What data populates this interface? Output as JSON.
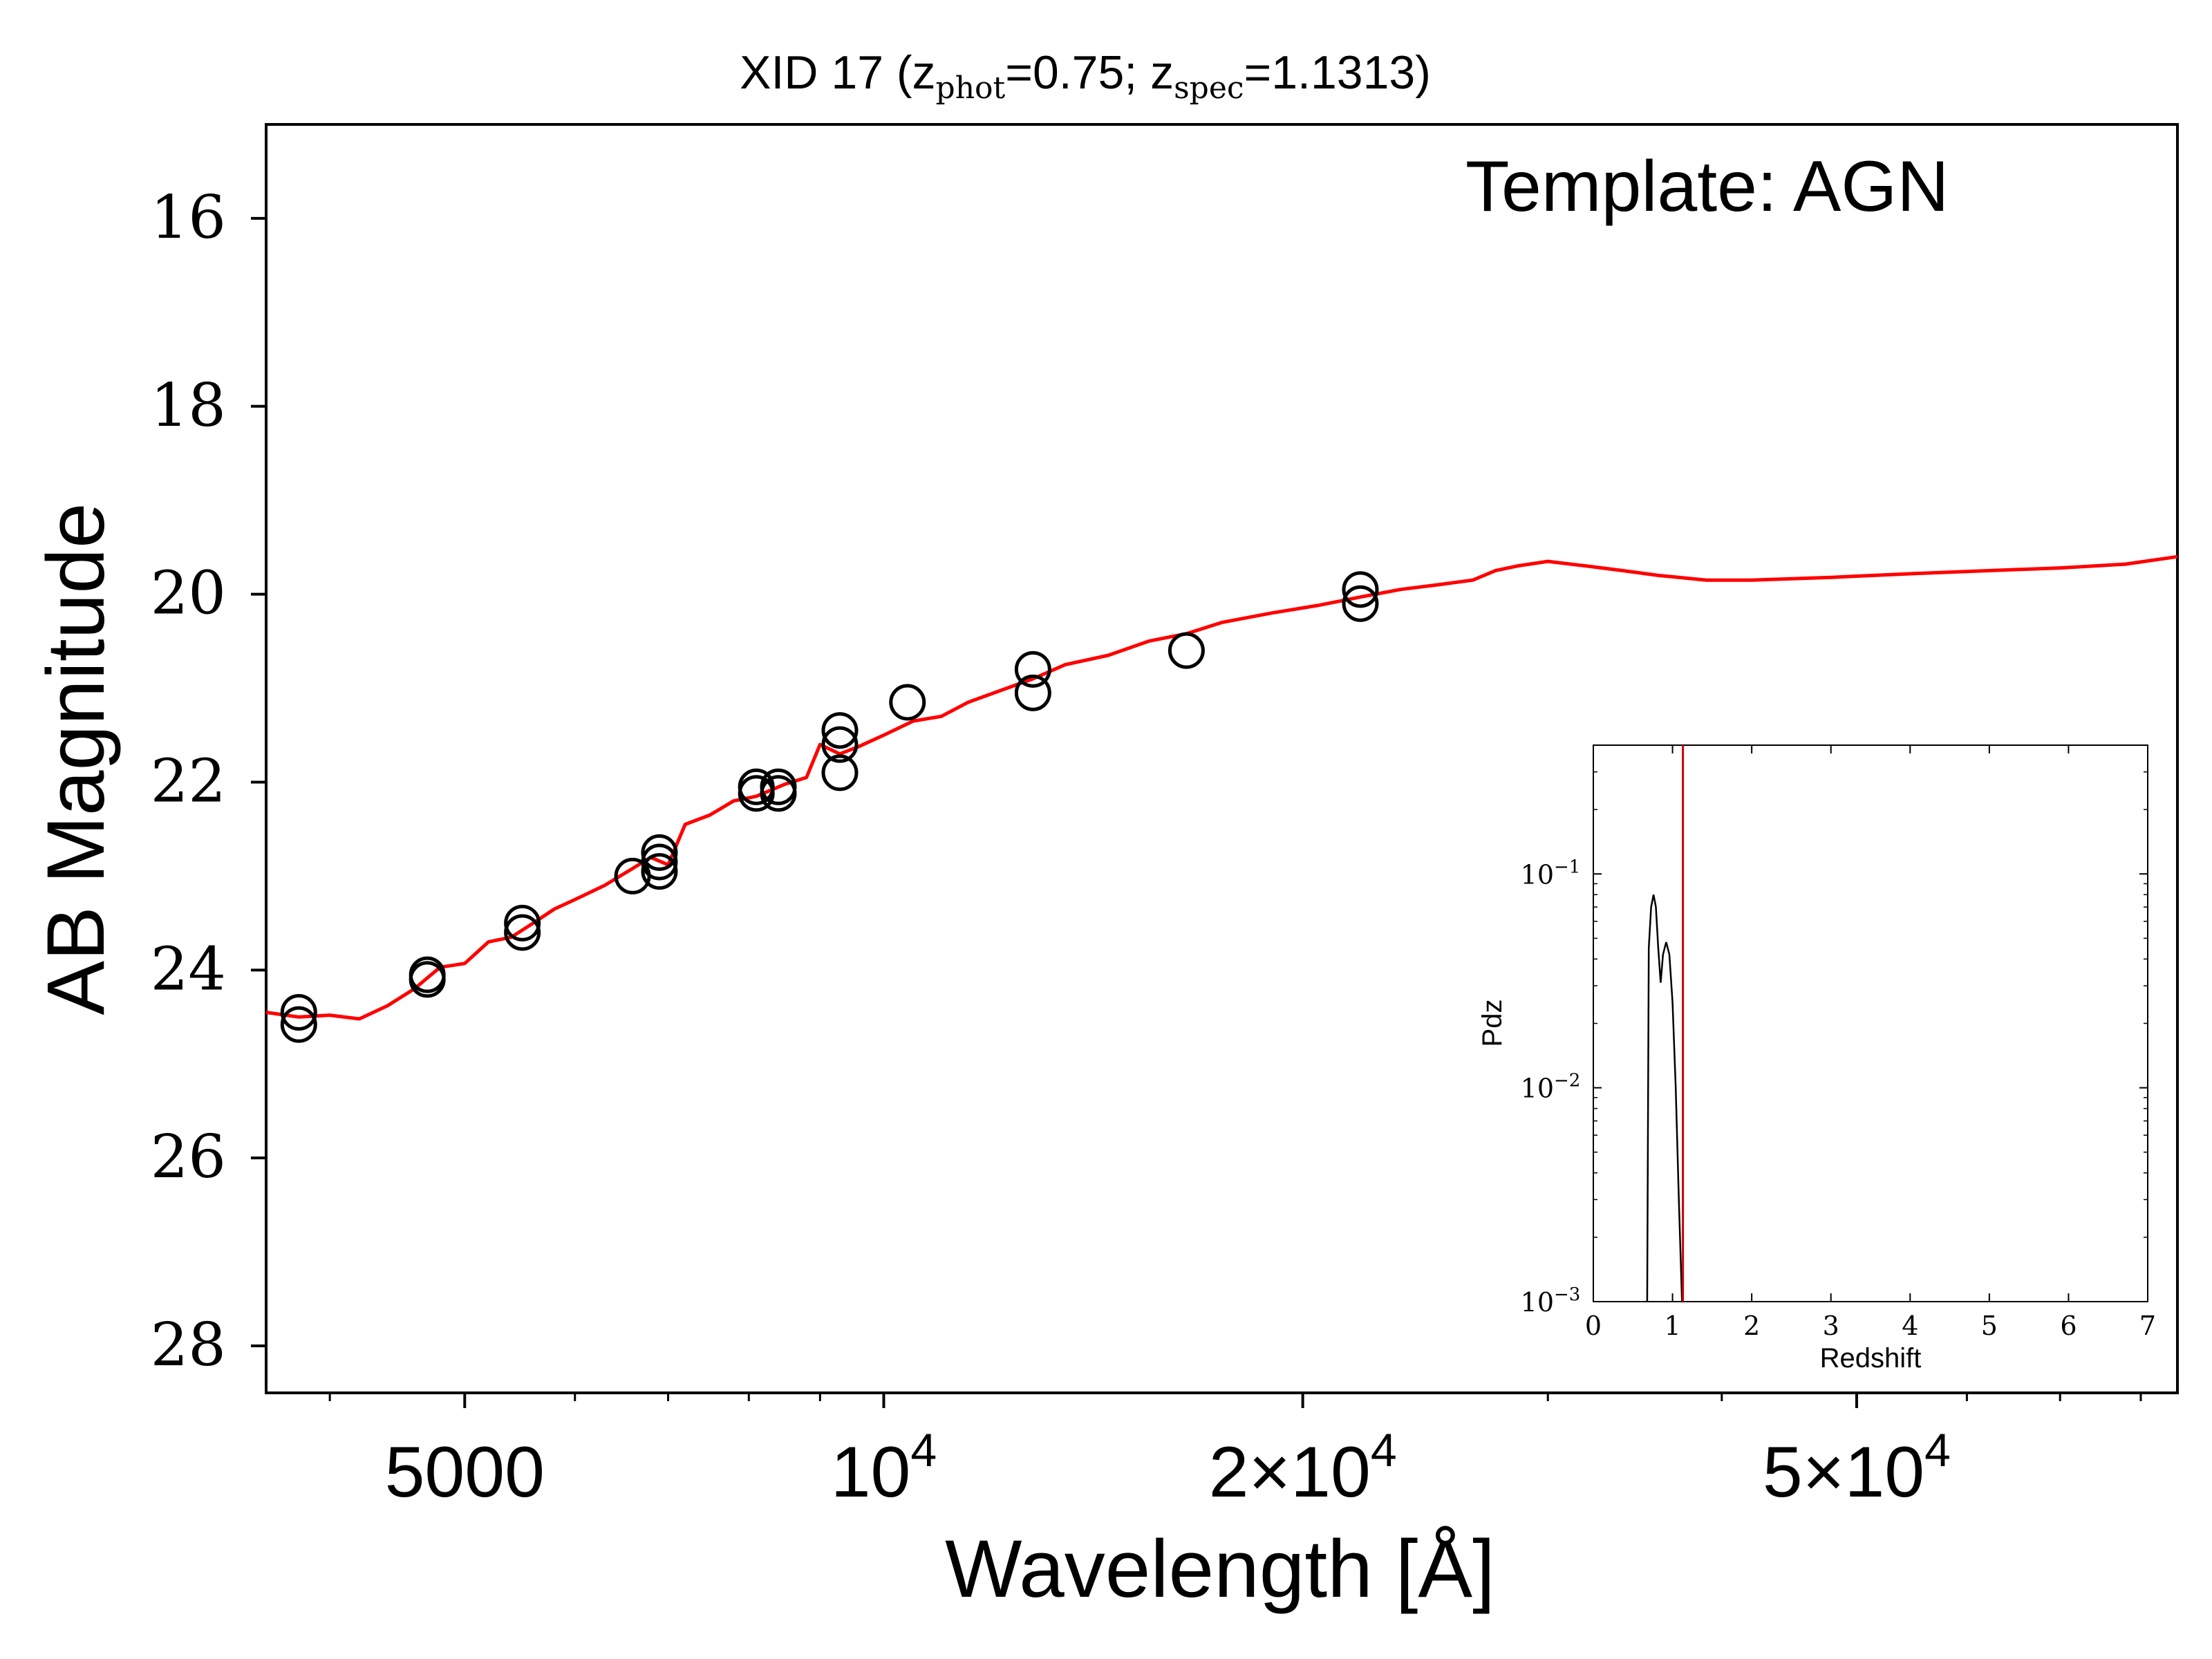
{
  "chart_data": [
    {
      "type": "scatter",
      "title": {
        "prefix": "XID 17 (z",
        "sub1": "phot",
        "mid": "=0.75; z",
        "sub2": "spec",
        "suffix": "=1.1313)"
      },
      "annotation": "Template: AGN",
      "xlabel": "Wavelength [Å]",
      "ylabel": "AB Magnitude",
      "xscale": "log",
      "xlim": [
        3600,
        85000
      ],
      "ylim": [
        28.5,
        15
      ],
      "y_inverted": true,
      "xticks": [
        {
          "value": 5000,
          "base": "5000",
          "exp": ""
        },
        {
          "value": 10000,
          "base": "10",
          "exp": "4"
        },
        {
          "value": 20000,
          "base": "2×10",
          "exp": "4"
        },
        {
          "value": 50000,
          "base": "5×10",
          "exp": "4"
        }
      ],
      "yticks": [
        "16",
        "18",
        "20",
        "22",
        "24",
        "26",
        "28"
      ],
      "grid": false,
      "colors": {
        "template": "#ff0000",
        "points": "#000000"
      },
      "series": [
        {
          "kind": "points",
          "points": [
            [
              3800,
              24.45
            ],
            [
              3800,
              24.58
            ],
            [
              4700,
              24.05
            ],
            [
              4700,
              24.1
            ],
            [
              5500,
              23.5
            ],
            [
              5500,
              23.6
            ],
            [
              6600,
              23.0
            ],
            [
              6900,
              22.75
            ],
            [
              6900,
              22.85
            ],
            [
              6900,
              22.95
            ],
            [
              8100,
              22.05
            ],
            [
              8100,
              22.12
            ],
            [
              8400,
              22.05
            ],
            [
              8400,
              22.12
            ],
            [
              9300,
              21.45
            ],
            [
              9300,
              21.6
            ],
            [
              9300,
              21.9
            ],
            [
              10400,
              21.15
            ],
            [
              12800,
              20.8
            ],
            [
              12800,
              21.05
            ],
            [
              16500,
              20.6
            ],
            [
              22000,
              19.95
            ],
            [
              22000,
              20.1
            ]
          ]
        },
        {
          "kind": "line",
          "points": [
            [
              3600,
              24.45
            ],
            [
              3800,
              24.5
            ],
            [
              4000,
              24.48
            ],
            [
              4200,
              24.52
            ],
            [
              4400,
              24.38
            ],
            [
              4600,
              24.2
            ],
            [
              4800,
              23.97
            ],
            [
              5000,
              23.93
            ],
            [
              5200,
              23.7
            ],
            [
              5400,
              23.65
            ],
            [
              5600,
              23.5
            ],
            [
              5800,
              23.35
            ],
            [
              6000,
              23.25
            ],
            [
              6300,
              23.1
            ],
            [
              6600,
              22.92
            ],
            [
              6800,
              22.8
            ],
            [
              7000,
              22.88
            ],
            [
              7200,
              22.45
            ],
            [
              7500,
              22.35
            ],
            [
              7800,
              22.2
            ],
            [
              8100,
              22.15
            ],
            [
              8500,
              22.02
            ],
            [
              8800,
              21.95
            ],
            [
              9000,
              21.6
            ],
            [
              9300,
              21.7
            ],
            [
              9600,
              21.62
            ],
            [
              10000,
              21.5
            ],
            [
              10500,
              21.35
            ],
            [
              11000,
              21.3
            ],
            [
              11500,
              21.15
            ],
            [
              12000,
              21.05
            ],
            [
              12800,
              20.9
            ],
            [
              13500,
              20.75
            ],
            [
              14500,
              20.65
            ],
            [
              15500,
              20.5
            ],
            [
              16500,
              20.42
            ],
            [
              17500,
              20.3
            ],
            [
              19000,
              20.2
            ],
            [
              20500,
              20.12
            ],
            [
              22000,
              20.03
            ],
            [
              23500,
              19.95
            ],
            [
              25000,
              19.9
            ],
            [
              26500,
              19.85
            ],
            [
              27500,
              19.75
            ],
            [
              28500,
              19.7
            ],
            [
              30000,
              19.65
            ],
            [
              32000,
              19.7
            ],
            [
              34000,
              19.75
            ],
            [
              36000,
              19.8
            ],
            [
              39000,
              19.85
            ],
            [
              42000,
              19.85
            ],
            [
              48000,
              19.82
            ],
            [
              55000,
              19.78
            ],
            [
              62000,
              19.75
            ],
            [
              70000,
              19.72
            ],
            [
              78000,
              19.68
            ],
            [
              85000,
              19.6
            ]
          ]
        }
      ]
    },
    {
      "type": "line",
      "inset": true,
      "xlabel": "Redshift",
      "ylabel": "Pdz",
      "yscale": "log",
      "xlim": [
        0,
        7
      ],
      "ylim": [
        0.001,
        0.4
      ],
      "xticks": [
        "0",
        "1",
        "2",
        "3",
        "4",
        "5",
        "6",
        "7"
      ],
      "yticks": [
        {
          "value": 0.001,
          "base": "10",
          "exp": "−3"
        },
        {
          "value": 0.01,
          "base": "10",
          "exp": "−2"
        },
        {
          "value": 0.1,
          "base": "10",
          "exp": "−1"
        }
      ],
      "zspec_line": 1.1313,
      "colors": {
        "pdz": "#000000",
        "zspec": "#cc0000"
      },
      "series": [
        {
          "points": [
            [
              0.68,
              0.001
            ],
            [
              0.7,
              0.045
            ],
            [
              0.73,
              0.07
            ],
            [
              0.76,
              0.08
            ],
            [
              0.79,
              0.07
            ],
            [
              0.82,
              0.045
            ],
            [
              0.85,
              0.031
            ],
            [
              0.88,
              0.042
            ],
            [
              0.92,
              0.048
            ],
            [
              0.96,
              0.042
            ],
            [
              1.0,
              0.025
            ],
            [
              1.04,
              0.01
            ],
            [
              1.08,
              0.003
            ],
            [
              1.12,
              0.001
            ]
          ]
        }
      ]
    }
  ]
}
